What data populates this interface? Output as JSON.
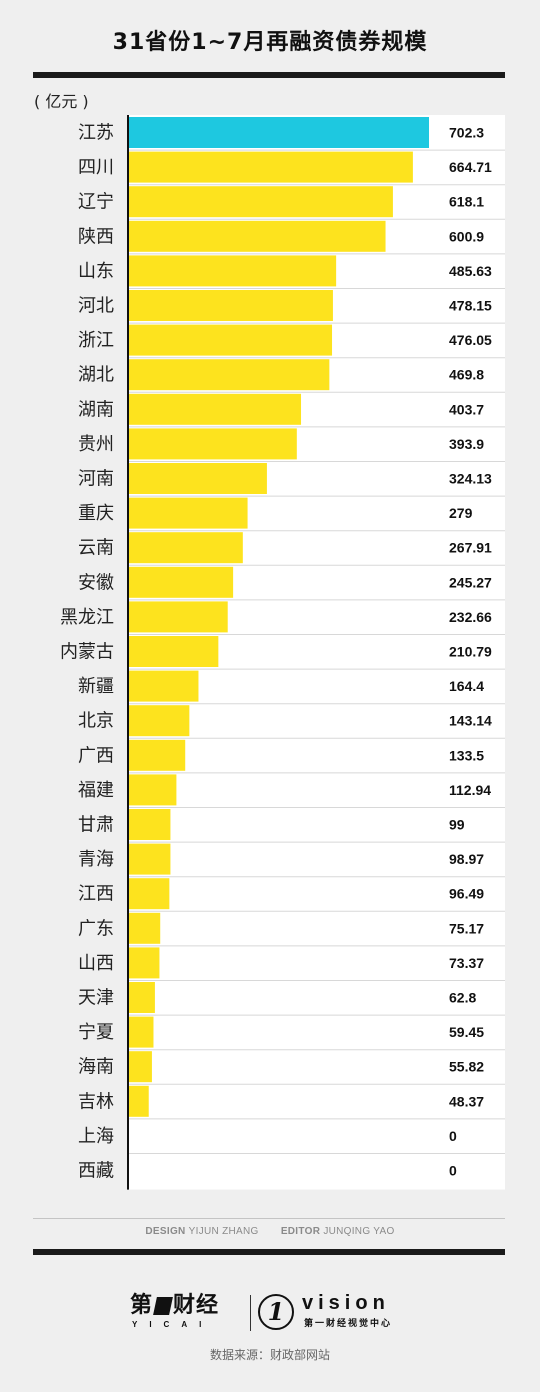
{
  "title": "31省份1~7月再融资债券规模",
  "unit_label": "( 亿元 )",
  "chart_data": {
    "type": "bar",
    "orientation": "horizontal",
    "title": "31省份1~7月再融资债券规模",
    "ylabel": "( 亿元 )",
    "xlim": [
      0,
      702.3
    ],
    "categories": [
      "江苏",
      "四川",
      "辽宁",
      "陕西",
      "山东",
      "河北",
      "浙江",
      "湖北",
      "湖南",
      "贵州",
      "河南",
      "重庆",
      "云南",
      "安徽",
      "黑龙江",
      "内蒙古",
      "新疆",
      "北京",
      "广西",
      "福建",
      "甘肃",
      "青海",
      "江西",
      "广东",
      "山西",
      "天津",
      "宁夏",
      "海南",
      "吉林",
      "上海",
      "西藏"
    ],
    "values": [
      702.3,
      664.71,
      618.1,
      600.9,
      485.63,
      478.15,
      476.05,
      469.8,
      403.7,
      393.9,
      324.13,
      279,
      267.91,
      245.27,
      232.66,
      210.79,
      164.4,
      143.14,
      133.5,
      112.94,
      99,
      98.97,
      96.49,
      75.17,
      73.37,
      62.8,
      59.45,
      55.82,
      48.37,
      0,
      0
    ],
    "value_labels": [
      "702.3",
      "664.71",
      "618.1",
      "600.9",
      "485.63",
      "478.15",
      "476.05",
      "469.8",
      "403.7",
      "393.9",
      "324.13",
      "279",
      "267.91",
      "245.27",
      "232.66",
      "210.79",
      "164.4",
      "143.14",
      "133.5",
      "112.94",
      "99",
      "98.97",
      "96.49",
      "75.17",
      "73.37",
      "62.8",
      "59.45",
      "55.82",
      "48.37",
      "0",
      "0"
    ],
    "highlight_color": "#1ec8e0",
    "bar_color": "#fde31e",
    "highlight_index": 0
  },
  "credits": {
    "design_label": "DESIGN",
    "design_name": "YIJUN ZHANG",
    "editor_label": "EDITOR",
    "editor_name": "JUNQING YAO"
  },
  "logos": {
    "yicai_left": "第",
    "yicai_right": "财经",
    "yicai_en": "YICAI",
    "vision_mark": "1",
    "vision_word": "vision",
    "vision_sub": "第一财经视觉中心"
  },
  "source": "数据来源：财政部网站"
}
